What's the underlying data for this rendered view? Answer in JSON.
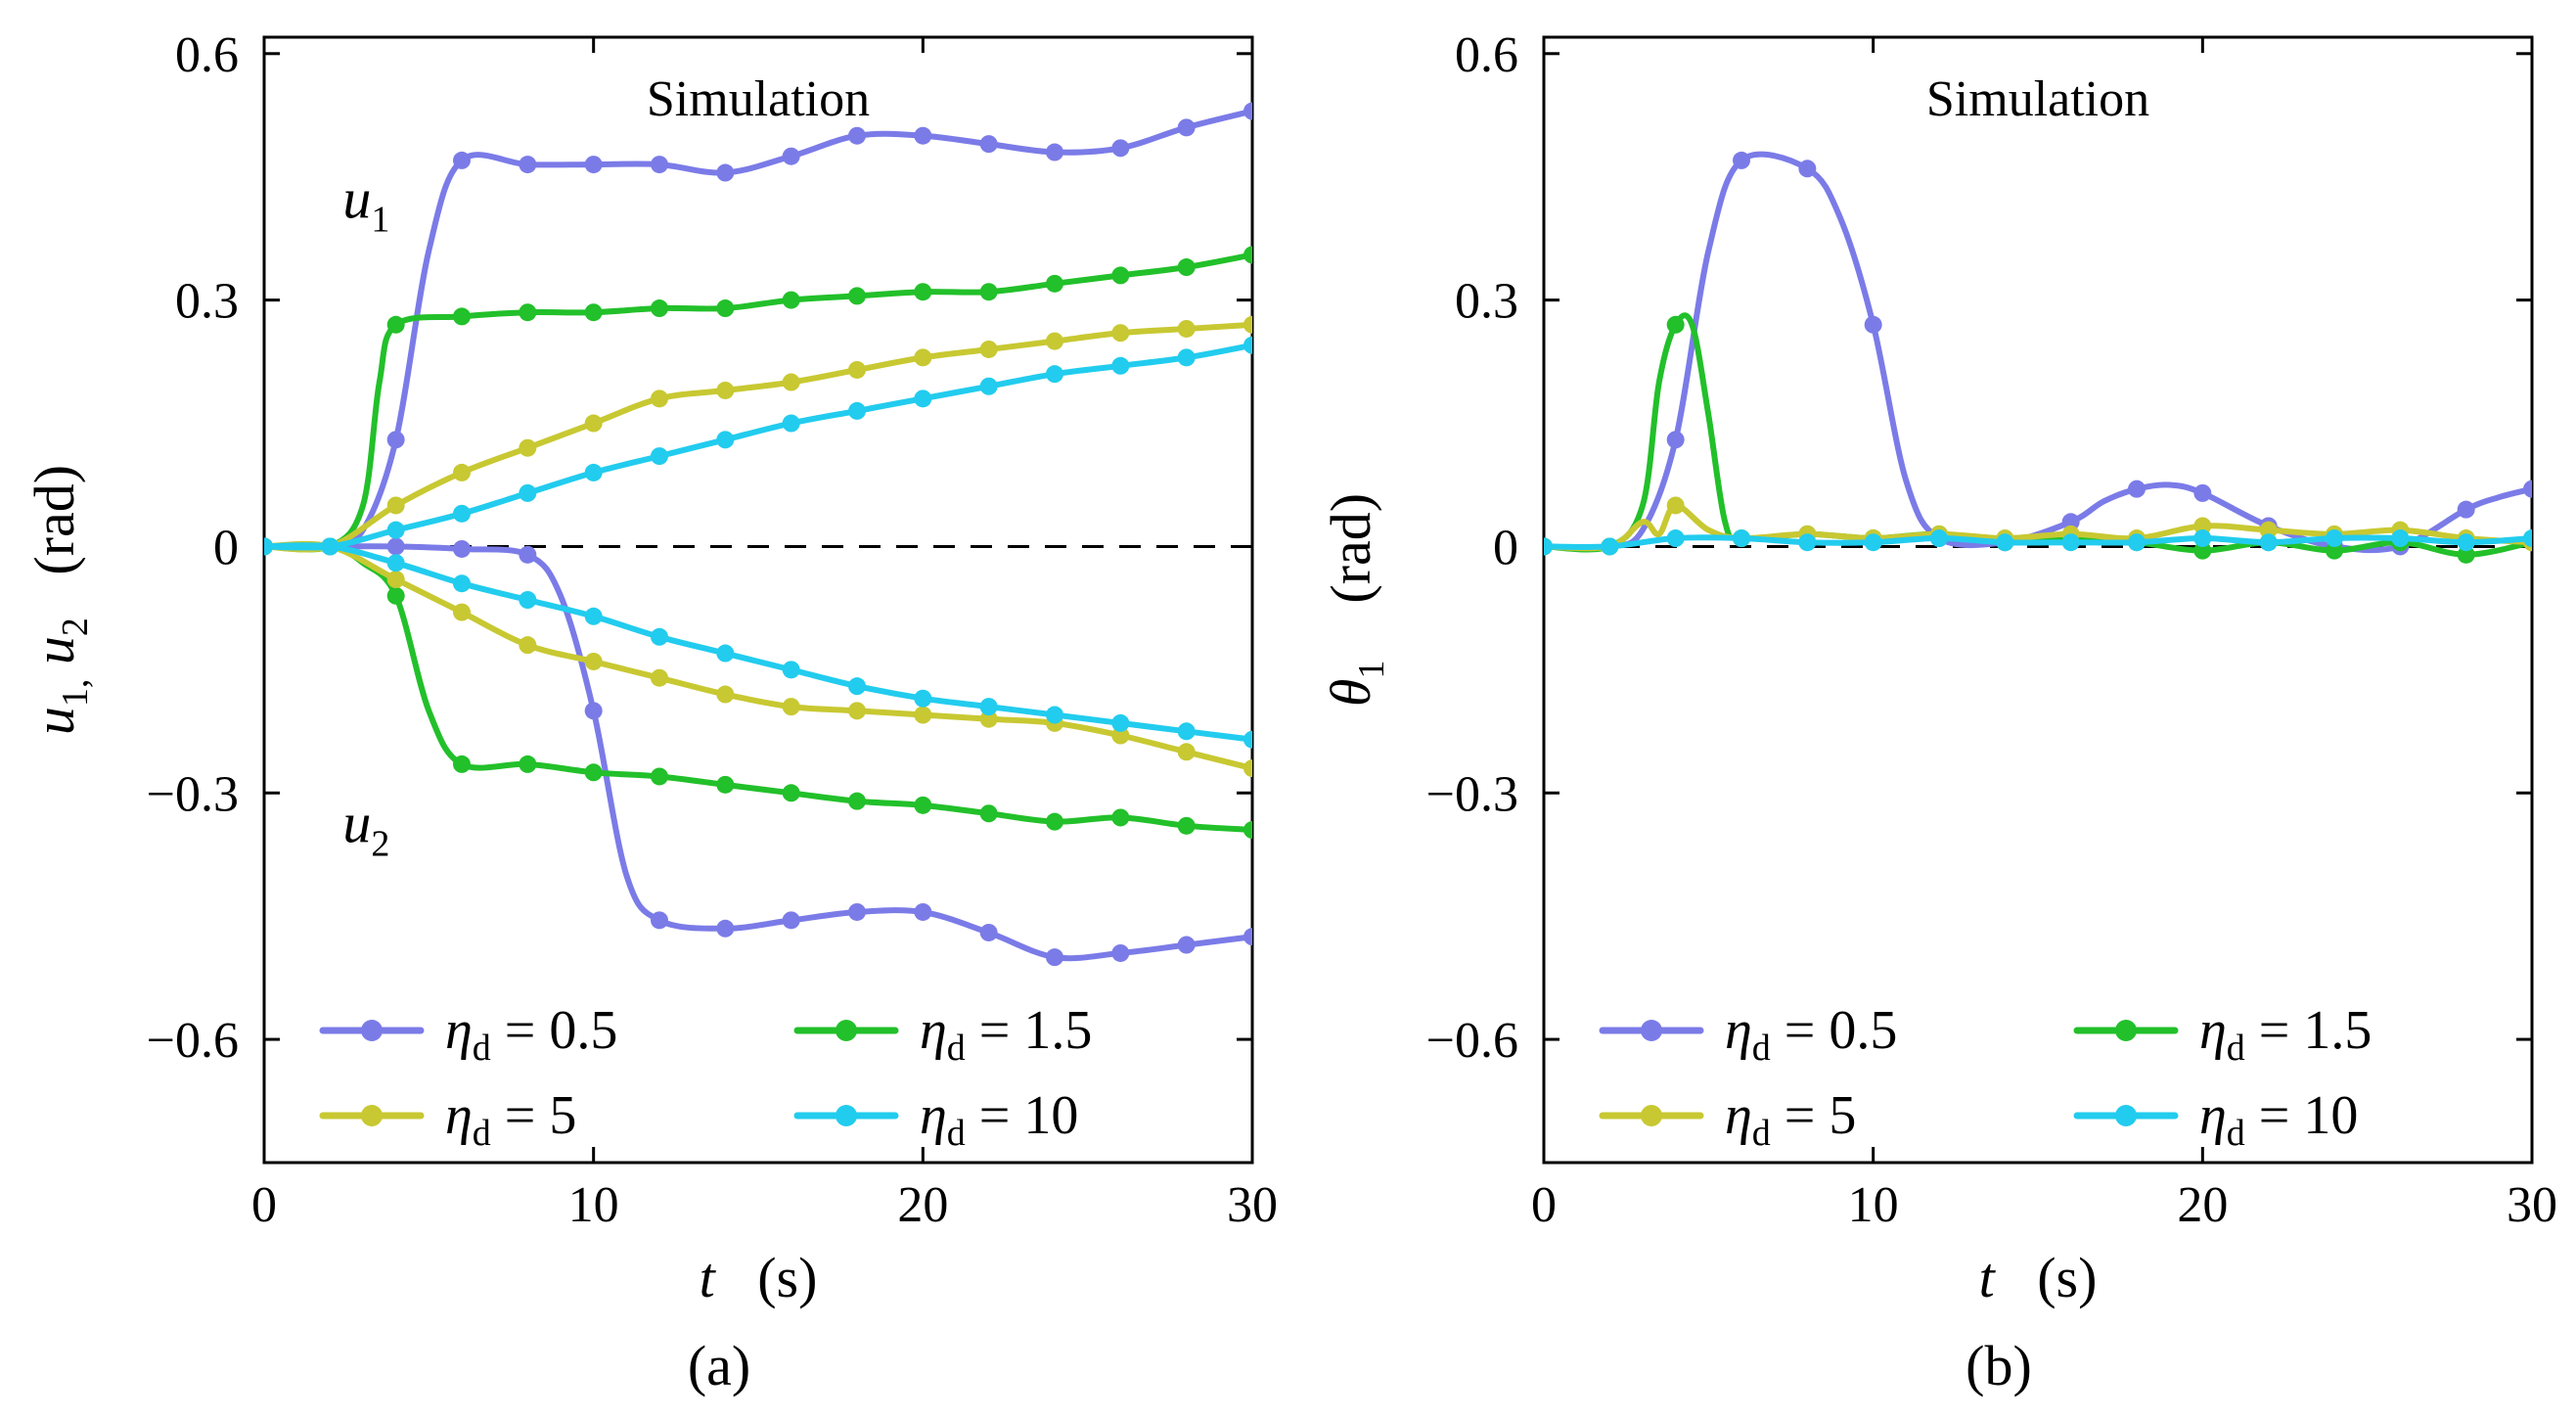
{
  "chart_data": [
    {
      "type": "line",
      "panel_label": "(a)",
      "title": "Simulation",
      "xlabel": {
        "var": "t",
        "unit": "(s)"
      },
      "ylabel": {
        "var1": "u",
        "sub1": "1,",
        "var2": "u",
        "sub2": "2",
        "unit": "(rad)"
      },
      "xlim": [
        0,
        30
      ],
      "ylim": [
        -0.75,
        0.62
      ],
      "xticks": [
        0,
        10,
        20,
        30
      ],
      "xtick_labels": [
        "0",
        "10",
        "20",
        "30"
      ],
      "yticks": [
        -0.6,
        -0.3,
        0,
        0.3,
        0.6
      ],
      "ytick_labels": [
        "−0.6",
        "−0.3",
        "0",
        "0.3",
        "0.6"
      ],
      "reference_line": 0,
      "annotations": [
        {
          "var": "u",
          "sub": "1",
          "x": 3.1,
          "y": 0.4
        },
        {
          "var": "u",
          "sub": "2",
          "x": 3.1,
          "y": -0.36
        }
      ],
      "legend": {
        "location": "lower",
        "entries": [
          {
            "var": "η",
            "sub": "d",
            "text": " = 0.5",
            "color": "#7b7be8"
          },
          {
            "var": "η",
            "sub": "d",
            "text": " = 1.5",
            "color": "#22c02a"
          },
          {
            "var": "η",
            "sub": "d",
            "text": " = 5",
            "color": "#c8c832"
          },
          {
            "var": "η",
            "sub": "d",
            "text": " = 10",
            "color": "#22ccee"
          }
        ]
      },
      "series": [
        {
          "name": "u1 ηd=0.5",
          "color": "#7b7be8",
          "x": [
            0,
            2,
            3,
            4,
            5,
            6,
            8,
            10,
            12,
            14,
            16,
            18,
            20,
            22,
            24,
            26,
            28,
            30
          ],
          "y": [
            0,
            0,
            0.02,
            0.13,
            0.36,
            0.47,
            0.465,
            0.465,
            0.465,
            0.455,
            0.475,
            0.5,
            0.5,
            0.49,
            0.48,
            0.485,
            0.51,
            0.53
          ]
        },
        {
          "name": "u2 ηd=0.5",
          "color": "#7b7be8",
          "x": [
            0,
            2,
            4,
            6,
            8,
            9,
            10,
            11,
            12,
            14,
            16,
            18,
            20,
            22,
            24,
            26,
            28,
            30
          ],
          "y": [
            0,
            0,
            0,
            -0.003,
            -0.01,
            -0.06,
            -0.2,
            -0.4,
            -0.455,
            -0.465,
            -0.455,
            -0.445,
            -0.445,
            -0.47,
            -0.5,
            -0.495,
            -0.485,
            -0.475
          ]
        },
        {
          "name": "u1 ηd=1.5",
          "color": "#22c02a",
          "x": [
            0,
            2,
            3,
            3.5,
            4,
            6,
            8,
            10,
            12,
            14,
            16,
            18,
            20,
            22,
            24,
            26,
            28,
            30
          ],
          "y": [
            0,
            0,
            0.05,
            0.2,
            0.27,
            0.28,
            0.285,
            0.285,
            0.29,
            0.29,
            0.3,
            0.305,
            0.31,
            0.31,
            0.32,
            0.33,
            0.34,
            0.355
          ]
        },
        {
          "name": "u2 ηd=1.5",
          "color": "#22c02a",
          "x": [
            0,
            2,
            3,
            4,
            5,
            6,
            8,
            10,
            12,
            14,
            16,
            18,
            20,
            22,
            24,
            26,
            28,
            30
          ],
          "y": [
            0,
            0,
            -0.02,
            -0.06,
            -0.2,
            -0.265,
            -0.265,
            -0.275,
            -0.28,
            -0.29,
            -0.3,
            -0.31,
            -0.315,
            -0.325,
            -0.335,
            -0.33,
            -0.34,
            -0.345
          ]
        },
        {
          "name": "u1 ηd=5",
          "color": "#c8c832",
          "x": [
            0,
            2,
            4,
            6,
            8,
            10,
            12,
            14,
            16,
            18,
            20,
            22,
            24,
            26,
            28,
            30
          ],
          "y": [
            0,
            0,
            0.05,
            0.09,
            0.12,
            0.15,
            0.18,
            0.19,
            0.2,
            0.215,
            0.23,
            0.24,
            0.25,
            0.26,
            0.265,
            0.27
          ]
        },
        {
          "name": "u2 ηd=5",
          "color": "#c8c832",
          "x": [
            0,
            2,
            4,
            6,
            8,
            10,
            12,
            14,
            16,
            18,
            20,
            22,
            24,
            26,
            28,
            30
          ],
          "y": [
            0,
            0,
            -0.04,
            -0.08,
            -0.12,
            -0.14,
            -0.16,
            -0.18,
            -0.195,
            -0.2,
            -0.205,
            -0.21,
            -0.215,
            -0.23,
            -0.25,
            -0.27
          ]
        },
        {
          "name": "u1 ηd=10",
          "color": "#22ccee",
          "x": [
            0,
            2,
            4,
            6,
            8,
            10,
            12,
            14,
            16,
            18,
            20,
            22,
            24,
            26,
            28,
            30
          ],
          "y": [
            0,
            0,
            0.02,
            0.04,
            0.065,
            0.09,
            0.11,
            0.13,
            0.15,
            0.165,
            0.18,
            0.195,
            0.21,
            0.22,
            0.23,
            0.245
          ]
        },
        {
          "name": "u2 ηd=10",
          "color": "#22ccee",
          "x": [
            0,
            2,
            4,
            6,
            8,
            10,
            12,
            14,
            16,
            18,
            20,
            22,
            24,
            26,
            28,
            30
          ],
          "y": [
            0,
            0,
            -0.02,
            -0.045,
            -0.065,
            -0.085,
            -0.11,
            -0.13,
            -0.15,
            -0.17,
            -0.185,
            -0.195,
            -0.205,
            -0.215,
            -0.225,
            -0.235
          ]
        }
      ]
    },
    {
      "type": "line",
      "panel_label": "(b)",
      "title": "Simulation",
      "xlabel": {
        "var": "t",
        "unit": "(s)"
      },
      "ylabel": {
        "var1": "θ",
        "sub1": "1",
        "unit": "(rad)"
      },
      "xlim": [
        0,
        30
      ],
      "ylim": [
        -0.75,
        0.62
      ],
      "xticks": [
        0,
        10,
        20,
        30
      ],
      "xtick_labels": [
        "0",
        "10",
        "20",
        "30"
      ],
      "yticks": [
        -0.6,
        -0.3,
        0,
        0.3,
        0.6
      ],
      "ytick_labels": [
        "−0.6",
        "−0.3",
        "0",
        "0.3",
        "0.6"
      ],
      "reference_line": 0,
      "legend": {
        "location": "lower",
        "entries": [
          {
            "var": "η",
            "sub": "d",
            "text": " = 0.5",
            "color": "#7b7be8"
          },
          {
            "var": "η",
            "sub": "d",
            "text": " = 1.5",
            "color": "#22c02a"
          },
          {
            "var": "η",
            "sub": "d",
            "text": " = 5",
            "color": "#c8c832"
          },
          {
            "var": "η",
            "sub": "d",
            "text": " = 10",
            "color": "#22ccee"
          }
        ]
      },
      "series": [
        {
          "name": "θ1 ηd=0.5",
          "color": "#7b7be8",
          "x": [
            0,
            2,
            3,
            4,
            5,
            6,
            8,
            9,
            10,
            11,
            12,
            14,
            16,
            17,
            18,
            19,
            20,
            22,
            24,
            26,
            28,
            29,
            30
          ],
          "y": [
            0,
            0,
            0.02,
            0.13,
            0.36,
            0.47,
            0.46,
            0.4,
            0.27,
            0.08,
            0.01,
            0.005,
            0.03,
            0.055,
            0.07,
            0.075,
            0.065,
            0.025,
            0,
            0,
            0.045,
            0.06,
            0.07
          ]
        },
        {
          "name": "θ1 ηd=1.5",
          "color": "#22c02a",
          "x": [
            0,
            2,
            3,
            3.5,
            4,
            4.5,
            5,
            5.5,
            6,
            8,
            10,
            12,
            14,
            16,
            18,
            20,
            22,
            24,
            26,
            28,
            30
          ],
          "y": [
            0,
            0,
            0.05,
            0.2,
            0.27,
            0.27,
            0.16,
            0.03,
            0.01,
            0.015,
            0.01,
            0.015,
            0.005,
            0.01,
            0.005,
            -0.005,
            0.005,
            -0.005,
            0.005,
            -0.01,
            0.005
          ]
        },
        {
          "name": "θ1 ηd=5",
          "color": "#c8c832",
          "x": [
            0,
            2,
            3,
            3.5,
            4,
            5,
            6,
            8,
            10,
            12,
            14,
            16,
            18,
            20,
            22,
            24,
            26,
            28,
            30
          ],
          "y": [
            0,
            0,
            0.03,
            0.015,
            0.05,
            0.02,
            0.01,
            0.015,
            0.01,
            0.015,
            0.01,
            0.015,
            0.01,
            0.025,
            0.02,
            0.015,
            0.02,
            0.01,
            0.005
          ]
        },
        {
          "name": "θ1 ηd=10",
          "color": "#22ccee",
          "x": [
            0,
            2,
            4,
            6,
            8,
            10,
            12,
            14,
            16,
            18,
            20,
            22,
            24,
            26,
            28,
            30
          ],
          "y": [
            0,
            0,
            0.01,
            0.01,
            0.005,
            0.005,
            0.01,
            0.005,
            0.005,
            0.005,
            0.01,
            0.005,
            0.01,
            0.01,
            0.005,
            0.01
          ]
        }
      ]
    }
  ]
}
